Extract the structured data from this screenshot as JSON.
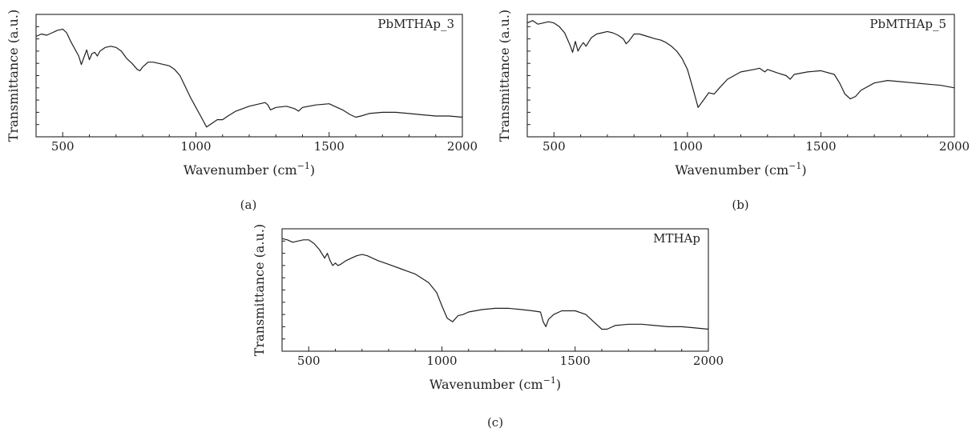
{
  "chart_data": [
    {
      "type": "line",
      "panel": "(a)",
      "series_label": "PbMTHAp_3",
      "xlabel": "Wavenumber (cm",
      "xlabel_sup": "−1",
      "xlabel_tail": ")",
      "ylabel": "Transmittance (a.u.)",
      "xlim": [
        400,
        2000
      ],
      "ylim": [
        0,
        100
      ],
      "x_ticks": [
        500,
        1000,
        1500,
        2000
      ],
      "x_tick_labels": [
        "500",
        "1000",
        "1500",
        "2000"
      ],
      "y_ticks_labeled": false,
      "grid": false,
      "x": [
        400,
        420,
        440,
        460,
        480,
        500,
        515,
        530,
        545,
        560,
        570,
        580,
        590,
        600,
        610,
        620,
        630,
        640,
        660,
        680,
        700,
        720,
        740,
        760,
        780,
        790,
        800,
        820,
        840,
        860,
        880,
        900,
        920,
        940,
        960,
        980,
        1000,
        1020,
        1040,
        1060,
        1080,
        1100,
        1120,
        1150,
        1200,
        1240,
        1260,
        1270,
        1280,
        1300,
        1340,
        1370,
        1385,
        1400,
        1450,
        1500,
        1520,
        1550,
        1580,
        1600,
        1620,
        1650,
        1700,
        1750,
        1800,
        1850,
        1900,
        1950,
        2000
      ],
      "y": [
        82,
        84,
        83,
        85,
        87,
        88,
        85,
        78,
        72,
        66,
        59,
        65,
        71,
        63,
        68,
        69,
        66,
        70,
        73,
        74,
        73,
        70,
        64,
        60,
        55,
        54,
        57,
        61,
        61,
        60,
        59,
        58,
        55,
        50,
        41,
        32,
        24,
        16,
        8,
        11,
        14,
        14,
        17,
        21,
        25,
        27,
        28,
        26,
        22,
        24,
        25,
        23,
        21,
        24,
        26,
        27,
        25,
        22,
        18,
        16,
        17,
        19,
        20,
        20,
        19,
        18,
        17,
        17,
        16
      ]
    },
    {
      "type": "line",
      "panel": "(b)",
      "series_label": "PbMTHAp_5",
      "xlabel": "Wavenumber (cm",
      "xlabel_sup": "−1",
      "xlabel_tail": ")",
      "ylabel": "Transmittance (a.u.)",
      "xlim": [
        400,
        2000
      ],
      "ylim": [
        0,
        100
      ],
      "x_ticks": [
        500,
        1000,
        1500,
        2000
      ],
      "x_tick_labels": [
        "500",
        "1000",
        "1500",
        "2000"
      ],
      "y_ticks_labeled": false,
      "grid": false,
      "x": [
        400,
        420,
        440,
        460,
        480,
        500,
        520,
        540,
        560,
        570,
        580,
        590,
        600,
        610,
        620,
        640,
        660,
        680,
        700,
        720,
        740,
        760,
        770,
        780,
        800,
        820,
        850,
        880,
        900,
        920,
        940,
        960,
        980,
        1000,
        1020,
        1040,
        1060,
        1080,
        1100,
        1120,
        1150,
        1200,
        1250,
        1270,
        1290,
        1300,
        1340,
        1370,
        1385,
        1400,
        1450,
        1500,
        1550,
        1570,
        1590,
        1610,
        1630,
        1650,
        1700,
        1750,
        1800,
        1850,
        1900,
        1950,
        2000
      ],
      "y": [
        93,
        95,
        92,
        93,
        94,
        93,
        90,
        85,
        75,
        69,
        78,
        70,
        74,
        77,
        74,
        81,
        84,
        85,
        86,
        85,
        83,
        80,
        76,
        78,
        84,
        84,
        82,
        80,
        79,
        77,
        74,
        70,
        64,
        55,
        40,
        24,
        30,
        36,
        35,
        40,
        47,
        53,
        55,
        56,
        53,
        55,
        52,
        50,
        47,
        51,
        53,
        54,
        51,
        44,
        35,
        31,
        33,
        38,
        44,
        46,
        45,
        44,
        43,
        42,
        40
      ]
    },
    {
      "type": "line",
      "panel": "(c)",
      "series_label": "MTHAp",
      "xlabel": "Wavenumber (cm",
      "xlabel_sup": "−1",
      "xlabel_tail": ")",
      "ylabel": "Transmittance (a.u.)",
      "xlim": [
        400,
        2000
      ],
      "ylim": [
        0,
        100
      ],
      "x_ticks": [
        500,
        1000,
        1500,
        2000
      ],
      "x_tick_labels": [
        "500",
        "1000",
        "1500",
        "2000"
      ],
      "y_ticks_labeled": false,
      "grid": false,
      "x": [
        400,
        420,
        440,
        460,
        480,
        500,
        520,
        540,
        560,
        570,
        580,
        590,
        600,
        610,
        620,
        640,
        660,
        680,
        700,
        720,
        760,
        800,
        850,
        900,
        950,
        980,
        1000,
        1020,
        1040,
        1060,
        1080,
        1100,
        1150,
        1200,
        1250,
        1300,
        1340,
        1370,
        1380,
        1390,
        1400,
        1420,
        1450,
        1500,
        1540,
        1570,
        1600,
        1620,
        1650,
        1700,
        1750,
        1800,
        1850,
        1900,
        1950,
        2000
      ],
      "y": [
        92,
        91,
        89,
        90,
        91,
        91,
        88,
        83,
        76,
        80,
        74,
        70,
        72,
        70,
        71,
        74,
        76,
        78,
        79,
        78,
        74,
        71,
        67,
        63,
        56,
        48,
        37,
        27,
        24,
        29,
        30,
        32,
        34,
        35,
        35,
        34,
        33,
        32,
        24,
        20,
        26,
        30,
        33,
        33,
        30,
        24,
        18,
        18,
        21,
        22,
        22,
        21,
        20,
        20,
        19,
        18
      ]
    }
  ]
}
